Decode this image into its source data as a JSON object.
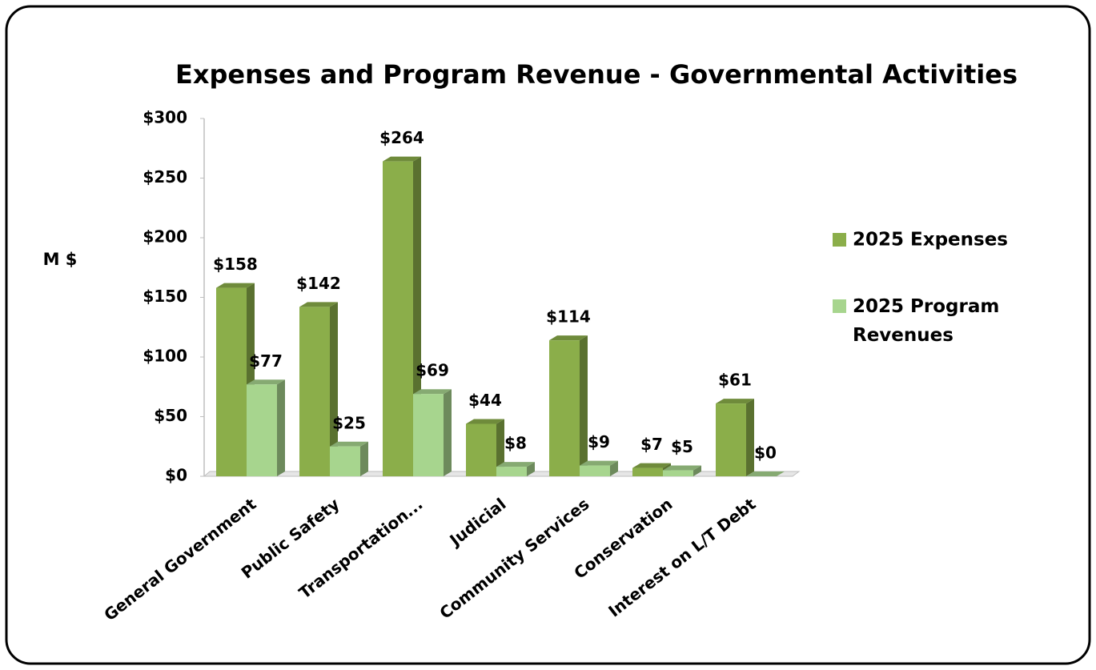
{
  "chart_data": {
    "type": "bar3d",
    "title": "Expenses and Program Revenue - Governmental Activities",
    "y_label": "M $",
    "categories": [
      "General Government",
      "Public Safety",
      "Transportation...",
      "Judicial",
      "Community Services",
      "Conservation",
      "Interest on L/T Debt"
    ],
    "series": [
      {
        "name": "2025 Expenses",
        "color": "#8bae4a",
        "values": [
          158,
          142,
          264,
          44,
          114,
          7,
          61
        ],
        "value_labels": [
          "$158",
          "$142",
          "$264",
          "$44",
          "$114",
          "$7",
          "$61"
        ]
      },
      {
        "name": "2025 Program Revenues",
        "color": "#a7d58e",
        "values": [
          77,
          25,
          69,
          8,
          9,
          5,
          0
        ],
        "value_labels": [
          "$77",
          "$25",
          "$69",
          "$8",
          "$9",
          "$5",
          "$0"
        ]
      }
    ],
    "ylim": [
      0,
      300
    ],
    "yticks": [
      {
        "value": 0,
        "label": "$0"
      },
      {
        "value": 50,
        "label": "$50"
      },
      {
        "value": 100,
        "label": "$100"
      },
      {
        "value": 150,
        "label": "$150"
      },
      {
        "value": 200,
        "label": "$200"
      },
      {
        "value": 250,
        "label": "$250"
      },
      {
        "value": 300,
        "label": "$300"
      }
    ],
    "legend": "right"
  }
}
